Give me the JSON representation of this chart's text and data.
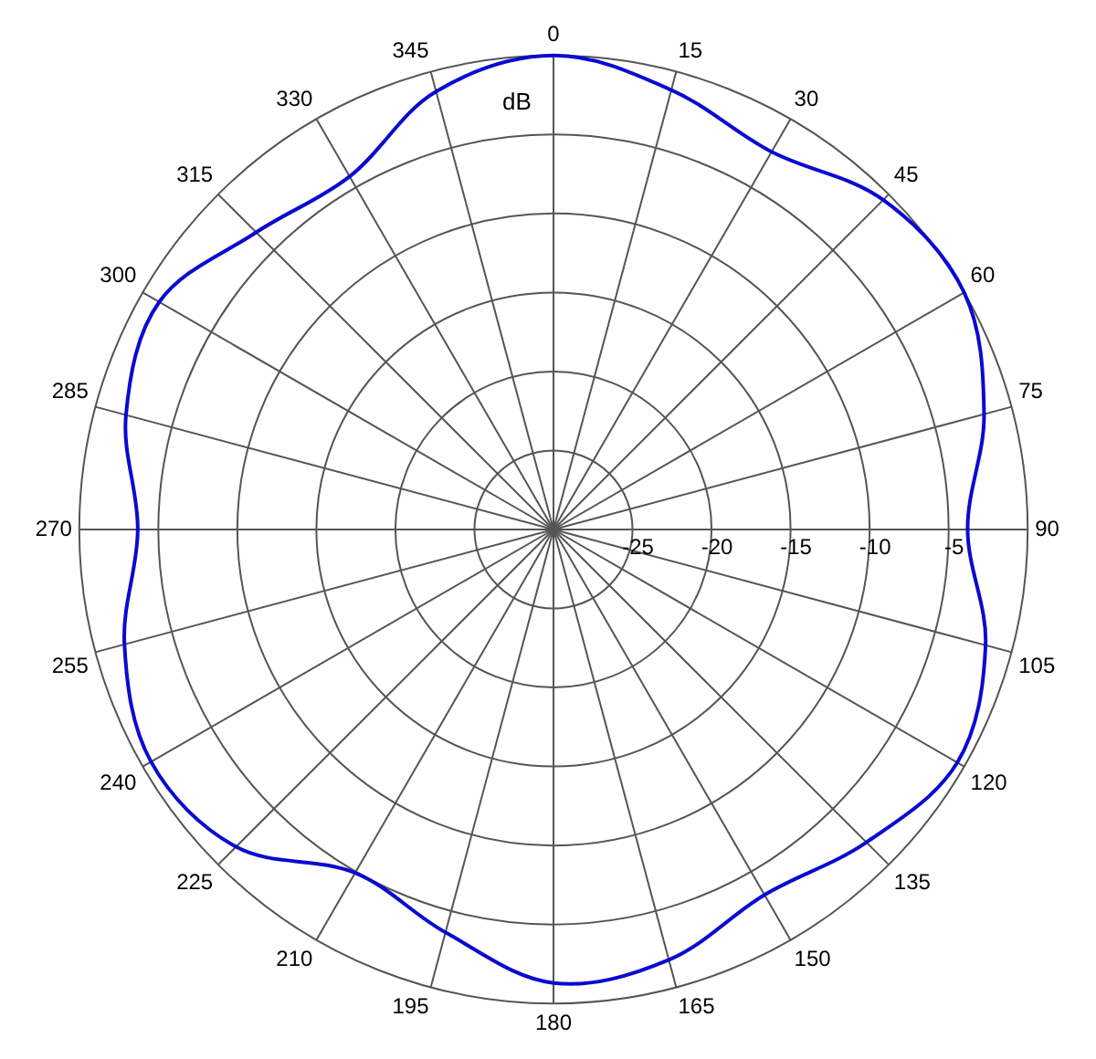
{
  "chart_data": {
    "type": "radar",
    "ylabel": "dB",
    "categories": [
      "0",
      "15",
      "30",
      "45",
      "60",
      "75",
      "90",
      "105",
      "120",
      "135",
      "150",
      "165",
      "180",
      "195",
      "210",
      "225",
      "240",
      "255",
      "270",
      "285",
      "300",
      "315",
      "330",
      "345"
    ],
    "series": [
      {
        "color": "#0a0ad0",
        "values": [
          0,
          -1.2,
          -2.4,
          -0.5,
          0,
          -1.8,
          -3.8,
          -1.7,
          -0.5,
          -2.0,
          -3.3,
          -1.8,
          -1.3,
          -3.6,
          -4.9,
          -1.6,
          -0.6,
          -1.9,
          -3.7,
          -2.0,
          -1.2,
          -3.4,
          -4.2,
          -1.3
        ]
      }
    ],
    "ylim": [
      -30,
      0
    ],
    "yticks": [
      -25,
      -20,
      -15,
      -10,
      -5
    ],
    "grid": true,
    "marker": "none"
  }
}
